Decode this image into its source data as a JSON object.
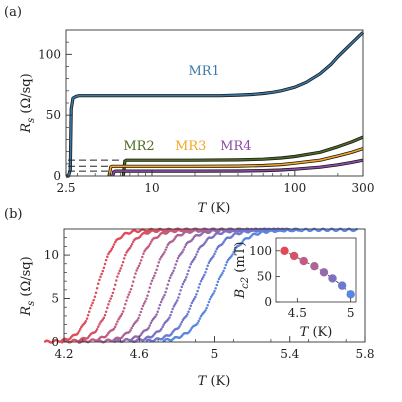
{
  "panel_a_label": "(a)",
  "panel_b_label": "(b)",
  "chart_data": [
    {
      "panel": "(a)",
      "type": "line",
      "xscale": "log",
      "xlim": [
        2.5,
        300
      ],
      "ylim": [
        0,
        120
      ],
      "xticks": [
        2.5,
        10,
        100,
        300
      ],
      "xtick_labels": [
        "2.5",
        "10",
        "100",
        "300"
      ],
      "yticks": [
        0,
        50,
        100
      ],
      "ytick_labels": [
        "0",
        "50",
        "100"
      ],
      "xlabel": "T (K)",
      "ylabel": "R_s (Ω/sq)",
      "series": [
        {
          "name": "MR1",
          "color": "#3a79a8",
          "x": [
            2.5,
            2.6,
            2.68,
            2.72,
            2.8,
            2.95,
            3.1,
            3.3,
            4,
            5,
            7,
            10,
            15,
            20,
            30,
            40,
            50,
            60,
            70,
            80,
            100,
            120,
            150,
            180,
            200,
            230,
            260,
            300
          ],
          "y": [
            0,
            0,
            5,
            55,
            64,
            65.5,
            66,
            66,
            66,
            66,
            66,
            66,
            66,
            66,
            66,
            66.5,
            67,
            67.8,
            68.8,
            70,
            73,
            77,
            84,
            92,
            98,
            105,
            111,
            118
          ]
        },
        {
          "name": "MR2",
          "color": "#4e6a22",
          "x": [
            6.3,
            6.45,
            6.6,
            8,
            10,
            20,
            40,
            60,
            80,
            100,
            150,
            200,
            250,
            300
          ],
          "y": [
            0,
            12,
            13,
            13,
            13,
            13,
            13.2,
            13.8,
            14.8,
            16,
            19.5,
            24,
            28,
            32
          ]
        },
        {
          "name": "MR3",
          "color": "#f5a623",
          "x": [
            5.0,
            5.15,
            5.3,
            6,
            8,
            10,
            20,
            40,
            60,
            80,
            100,
            150,
            200,
            250,
            300
          ],
          "y": [
            0,
            7.5,
            8,
            8,
            8,
            8,
            8,
            8.1,
            8.6,
            9.4,
            10.5,
            13,
            16.5,
            19.5,
            22.5
          ]
        },
        {
          "name": "MR4",
          "color": "#8e4aa8",
          "x": [
            5.3,
            5.42,
            5.55,
            6,
            8,
            10,
            20,
            40,
            60,
            80,
            100,
            150,
            200,
            250,
            300
          ],
          "y": [
            0,
            3.5,
            4,
            4,
            4,
            4,
            4,
            4.1,
            4.4,
            4.9,
            5.6,
            7.2,
            9.2,
            11.2,
            13
          ]
        }
      ]
    },
    {
      "panel": "(b)",
      "type": "scatter",
      "xlim": [
        4.2,
        5.8
      ],
      "ylim": [
        0,
        13
      ],
      "xticks": [
        4.2,
        4.6,
        5,
        5.4,
        5.8
      ],
      "xtick_labels": [
        "4.2",
        "4.6",
        "5",
        "5.4",
        "5.8"
      ],
      "yticks": [
        0,
        5,
        10
      ],
      "ytick_labels": [
        "0",
        "5",
        "10"
      ],
      "xlabel": "T (K)",
      "ylabel": "R_s (Ω/sq)",
      "curve_midpoints_K": [
        4.38,
        4.47,
        4.56,
        4.66,
        4.75,
        4.83,
        4.92,
        5.01
      ],
      "curve_widths_K": [
        0.045,
        0.047,
        0.049,
        0.051,
        0.054,
        0.057,
        0.06,
        0.065
      ],
      "saturation_Rs": 12.9,
      "curve_colors": [
        "#e04b57",
        "#d3536a",
        "#c35c80",
        "#ad6496",
        "#9569ac",
        "#7d70c2",
        "#6a79d4",
        "#5a86e0"
      ]
    },
    {
      "panel": "(b) inset",
      "type": "line",
      "xlim": [
        4.3,
        5.05
      ],
      "ylim": [
        0,
        125
      ],
      "xticks": [
        4.5,
        5
      ],
      "xtick_labels": [
        "4.5",
        "5"
      ],
      "yticks": [
        0,
        50,
        100
      ],
      "ytick_labels": [
        "0",
        "50",
        "100"
      ],
      "xlabel": "T (K)",
      "ylabel": "B_c2 (mT)",
      "x": [
        4.38,
        4.47,
        4.56,
        4.66,
        4.75,
        4.83,
        4.92,
        5.0
      ],
      "y": [
        100,
        90,
        80,
        70,
        58,
        46,
        32,
        15
      ]
    }
  ]
}
